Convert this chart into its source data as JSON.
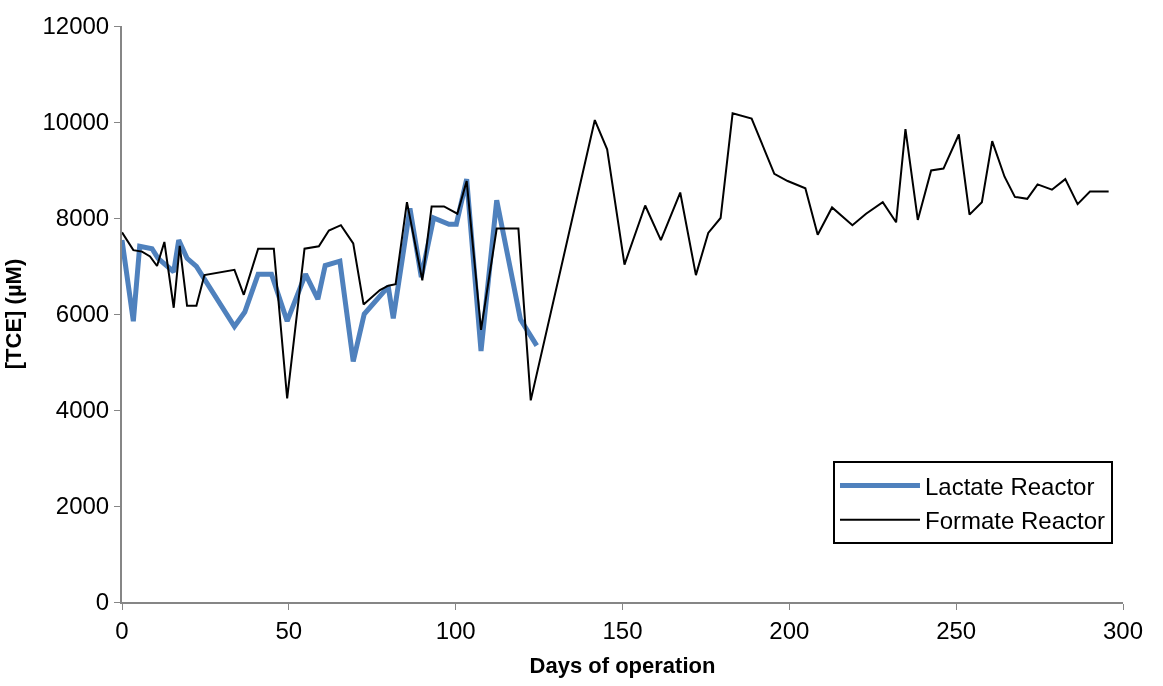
{
  "chart_data": {
    "type": "line",
    "xlabel": "Days of operation",
    "ylabel": "[TCE] (µM)",
    "xlim": [
      0,
      300
    ],
    "xticks": [
      0,
      50,
      100,
      150,
      200,
      250,
      300
    ],
    "ylim": [
      0,
      12000
    ],
    "yticks": [
      0,
      2000,
      4000,
      6000,
      8000,
      10000,
      12000
    ],
    "legend": "bottom right",
    "marker": "none",
    "line_style": "solid",
    "series": [
      {
        "name": "Lactate Reactor",
        "color": "#4f81bd",
        "x": [
          0,
          3.4,
          5.3,
          9,
          10.8,
          15.5,
          17,
          19.5,
          22.3,
          33.7,
          36.8,
          40.8,
          44.8,
          49.5,
          55,
          58.7,
          60.9,
          65.3,
          69.3,
          72.6,
          79.8,
          81.3,
          86.3,
          89.7,
          93.4,
          98,
          100.2,
          103.3,
          107.6,
          112.3,
          119.4,
          124.3
        ],
        "values": [
          7540,
          5850,
          7410,
          7360,
          7160,
          6880,
          7540,
          7160,
          6990,
          5740,
          6040,
          6830,
          6830,
          5850,
          6830,
          6310,
          7010,
          7100,
          5010,
          6000,
          6570,
          5910,
          8200,
          6770,
          8000,
          7870,
          7870,
          8810,
          5230,
          8370,
          5890,
          5340
        ]
      },
      {
        "name": "Formate Reactor",
        "color": "#000000",
        "x": [
          0,
          3.4,
          6,
          8.4,
          10.5,
          12.7,
          15.5,
          17.3,
          19.5,
          22.3,
          24.7,
          33.7,
          36.5,
          40.8,
          45.5,
          49.5,
          54.7,
          59,
          62,
          65.6,
          69.3,
          72.4,
          77.3,
          79.8,
          82,
          85.4,
          90,
          92.8,
          96.5,
          100.5,
          103.3,
          107.6,
          112.3,
          118.8,
          122.5,
          141.7,
          145.4,
          150.6,
          156.8,
          161.5,
          167.3,
          172,
          175.7,
          179.4,
          183,
          188.7,
          195.5,
          199.5,
          204.8,
          208.5,
          212.8,
          218.9,
          223,
          228,
          232,
          234.8,
          238.5,
          242.5,
          246.2,
          250.8,
          254,
          257.7,
          260.8,
          264.5,
          267.6,
          271.3,
          274.4,
          278.7,
          282.7,
          286.4,
          290.1,
          295.7
        ],
        "values": [
          7700,
          7330,
          7300,
          7200,
          7000,
          7500,
          6130,
          7420,
          6170,
          6170,
          6810,
          6920,
          6400,
          7360,
          7360,
          4240,
          7360,
          7410,
          7740,
          7850,
          7470,
          6200,
          6500,
          6590,
          6620,
          8330,
          6700,
          8240,
          8240,
          8090,
          8770,
          5670,
          7780,
          7780,
          4200,
          10040,
          9430,
          7030,
          8260,
          7540,
          8530,
          6810,
          7690,
          8000,
          10180,
          10070,
          8920,
          8770,
          8620,
          7650,
          8220,
          7850,
          8090,
          8330,
          7910,
          9850,
          7960,
          8990,
          9030,
          9740,
          8070,
          8330,
          9600,
          8860,
          8440,
          8400,
          8700,
          8590,
          8810,
          8290,
          8550,
          8550
        ]
      }
    ]
  }
}
